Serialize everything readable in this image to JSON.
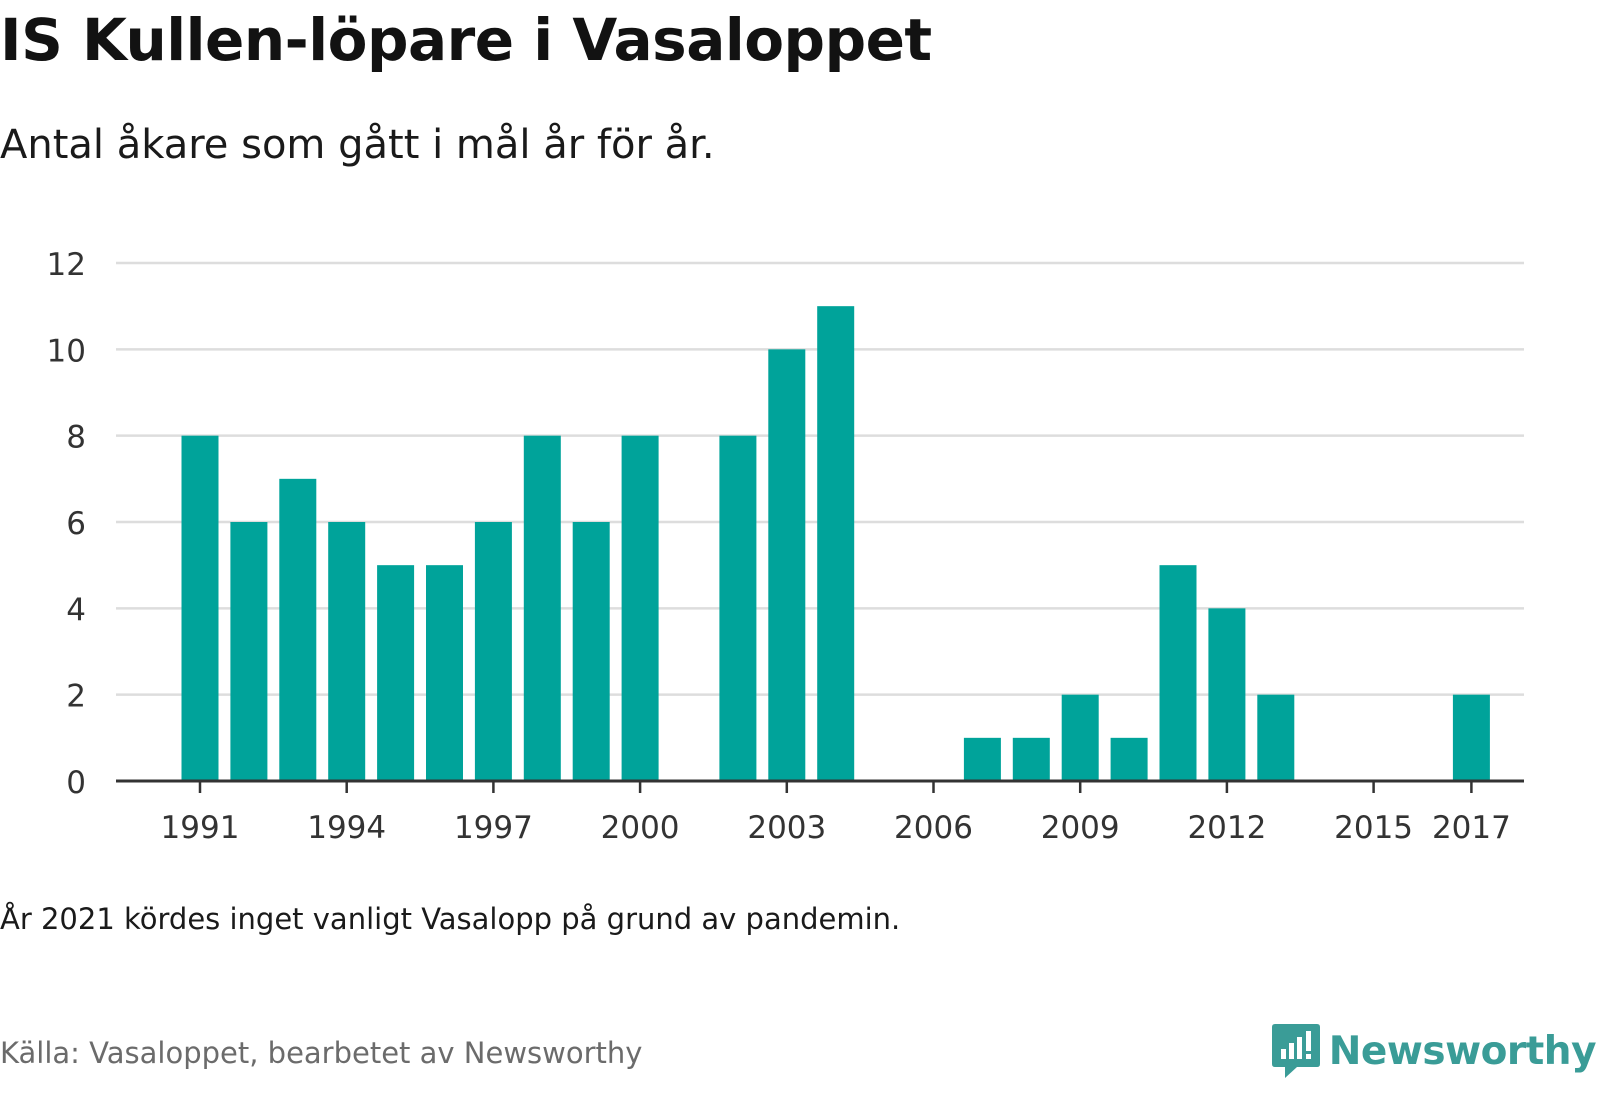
{
  "title": "IS Kullen-löpare i Vasaloppet",
  "subtitle": "Antal åkare som gått i mål år för år.",
  "note": "År 2021 kördes inget vanligt Vasalopp på grund av pandemin.",
  "source": "Källa: Vasaloppet, bearbetet av Newsworthy",
  "brand": {
    "name": "Newsworthy",
    "icon": "newsworthy-logo-icon"
  },
  "colors": {
    "bar": "#00a39a",
    "grid": "#dddddd",
    "axis": "#333333",
    "brand": "#3a9c97"
  },
  "chart_data": {
    "type": "bar",
    "x": [
      1991,
      1992,
      1993,
      1994,
      1995,
      1996,
      1997,
      1998,
      1999,
      2000,
      2001,
      2002,
      2003,
      2004,
      2005,
      2006,
      2007,
      2008,
      2009,
      2010,
      2011,
      2012,
      2013,
      2014,
      2015,
      2016,
      2017
    ],
    "values": [
      8,
      6,
      7,
      6,
      5,
      5,
      6,
      8,
      6,
      8,
      0,
      8,
      10,
      11,
      0,
      0,
      1,
      1,
      2,
      1,
      5,
      4,
      2,
      0,
      0,
      0,
      2
    ],
    "xticks": [
      1991,
      1994,
      1997,
      2000,
      2003,
      2006,
      2009,
      2012,
      2015,
      2017
    ],
    "yticks": [
      0,
      2,
      4,
      6,
      8,
      10,
      12
    ],
    "ylim": [
      0,
      12
    ],
    "xlabel": "",
    "ylabel": "",
    "grid": true
  }
}
